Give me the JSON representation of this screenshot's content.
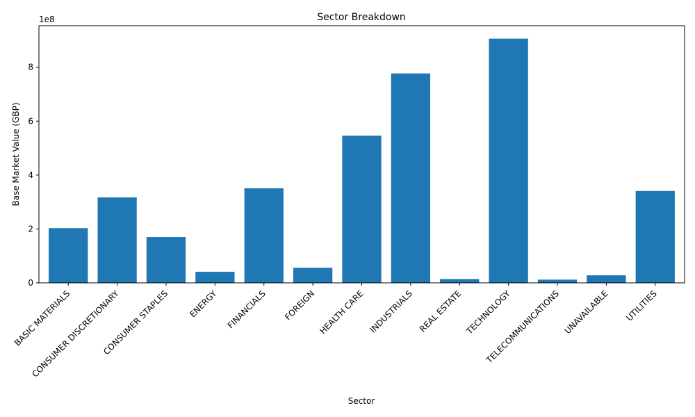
{
  "chart_data": {
    "type": "bar",
    "title": "Sector Breakdown",
    "xlabel": "Sector",
    "ylabel": "Base Market Value (GBP)",
    "y_scale_label": "1e8",
    "y_scale_factor": 100000000,
    "categories": [
      "BASIC MATERIALS",
      "CONSUMER DISCRETIONARY",
      "CONSUMER STAPLES",
      "ENERGY",
      "FINANCIALS",
      "FOREIGN",
      "HEALTH CARE",
      "INDUSTRIALS",
      "REAL ESTATE",
      "TECHNOLOGY",
      "TELECOMMUNICATIONS",
      "UNAVAILABLE",
      "UTILITIES"
    ],
    "values": [
      203000000,
      317000000,
      170000000,
      41000000,
      351000000,
      56000000,
      546000000,
      777000000,
      14000000,
      906000000,
      12000000,
      28000000,
      341000000
    ],
    "ylim": [
      0,
      954000000
    ],
    "yticks": [
      0,
      200000000,
      400000000,
      600000000,
      800000000
    ],
    "ytick_labels": [
      "0",
      "2",
      "4",
      "6",
      "8"
    ],
    "bar_color": "#1f77b4",
    "grid": false,
    "legend": "none"
  }
}
